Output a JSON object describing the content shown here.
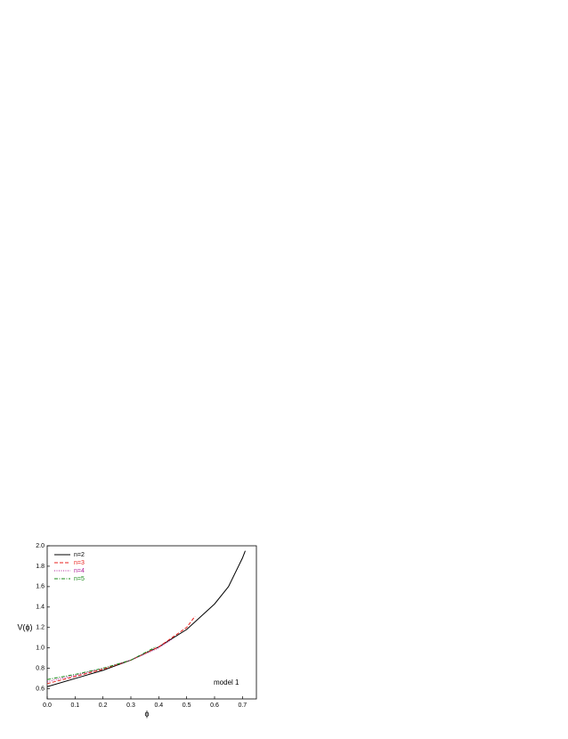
{
  "chart_data": {
    "type": "line",
    "x_label": "ϕ",
    "y_label": "V(ϕ)",
    "annotation": "model 1",
    "xlim": [
      0,
      0.75
    ],
    "ylim": [
      0.5,
      2.0
    ],
    "xticks": [
      {
        "value": 0,
        "label": "0.0"
      },
      0.1,
      0.2,
      0.3,
      0.4,
      0.5,
      0.6,
      0.7
    ],
    "yticks": [
      0.6,
      0.8,
      {
        "value": 1,
        "label": "1.0"
      },
      1.2,
      1.4,
      1.6,
      1.8,
      {
        "value": 2,
        "label": "2.0"
      }
    ],
    "legend": "upper left",
    "series": [
      {
        "name": "n=2",
        "color": "#000000",
        "dash": "solid",
        "x": [
          0,
          0.1,
          0.2,
          0.3,
          0.4,
          0.5,
          0.6,
          0.65,
          0.7,
          0.71
        ],
        "values": [
          0.62,
          0.7,
          0.78,
          0.88,
          1.01,
          1.18,
          1.43,
          1.6,
          1.88,
          1.95
        ]
      },
      {
        "name": "n=3",
        "color": "#e8201c",
        "dash": "dashed",
        "x": [
          0,
          0.1,
          0.2,
          0.3,
          0.4,
          0.5,
          0.53
        ],
        "values": [
          0.65,
          0.72,
          0.79,
          0.88,
          1.01,
          1.2,
          1.31
        ]
      },
      {
        "name": "n=4",
        "color": "#b0209a",
        "dash": "dotted",
        "x": [
          0,
          0.1,
          0.2,
          0.3,
          0.4,
          0.45
        ],
        "values": [
          0.67,
          0.73,
          0.8,
          0.88,
          1.0,
          1.09
        ]
      },
      {
        "name": "n=5",
        "color": "#1a8a1a",
        "dash": "dashdot",
        "x": [
          0,
          0.1,
          0.2,
          0.3,
          0.39
        ],
        "values": [
          0.69,
          0.74,
          0.8,
          0.88,
          1.01
        ]
      }
    ]
  }
}
